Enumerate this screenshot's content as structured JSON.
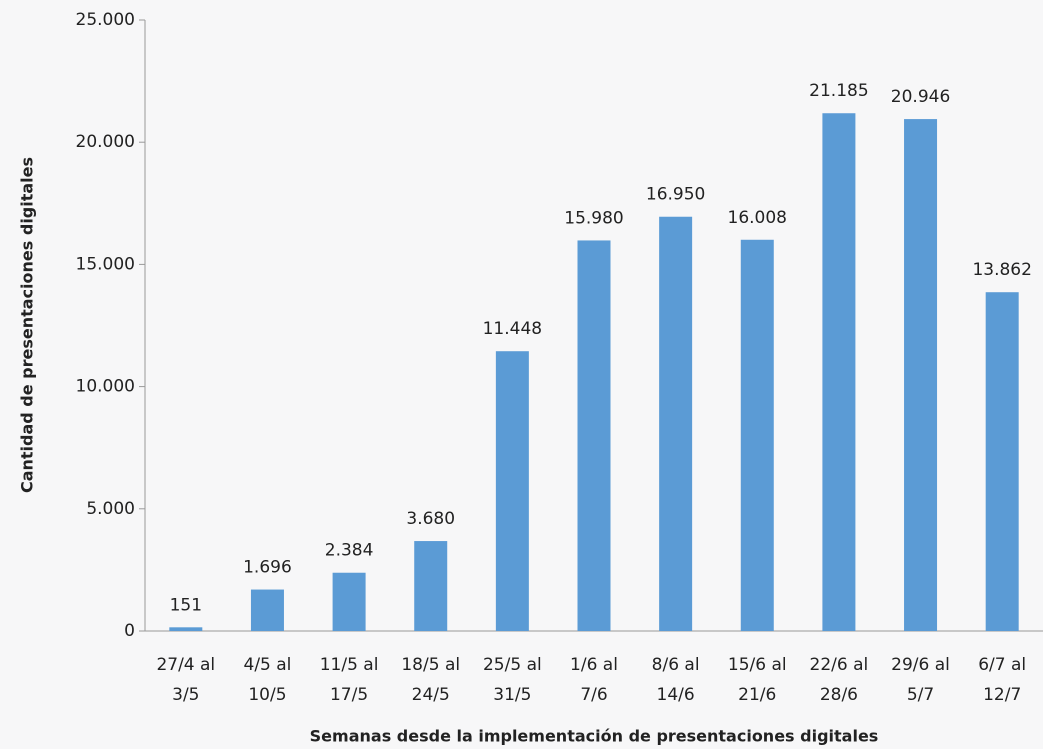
{
  "chart_data": {
    "type": "bar",
    "x_label": "Semanas desde la implementación de presentaciones digitales",
    "y_label": "Cantidad de presentaciones digitales",
    "categories": [
      [
        "27/4 al",
        "3/5"
      ],
      [
        "4/5 al",
        "10/5"
      ],
      [
        "11/5 al",
        "17/5"
      ],
      [
        "18/5 al",
        "24/5"
      ],
      [
        "25/5 al",
        "31/5"
      ],
      [
        "1/6 al",
        "7/6"
      ],
      [
        "8/6 al",
        "14/6"
      ],
      [
        "15/6 al",
        "21/6"
      ],
      [
        "22/6 al",
        "28/6"
      ],
      [
        "29/6 al",
        "5/7"
      ],
      [
        "6/7 al",
        "12/7"
      ]
    ],
    "values": [
      151,
      1696,
      2384,
      3680,
      11448,
      15980,
      16950,
      16008,
      21185,
      20946,
      13862
    ],
    "value_labels": [
      "151",
      "1.696",
      "2.384",
      "3.680",
      "11.448",
      "15.980",
      "16.950",
      "16.008",
      "21.185",
      "20.946",
      "13.862"
    ],
    "color": "#5b9bd5",
    "ylim": [
      0,
      25000
    ],
    "yticks": [
      0,
      {
        "value": 5000,
        "label": "5.000"
      },
      {
        "value": 10000,
        "label": "10.000"
      },
      {
        "value": 15000,
        "label": "15.000"
      },
      {
        "value": 20000,
        "label": "20.000"
      },
      {
        "value": 25000,
        "label": "25.000"
      }
    ],
    "grid": false
  }
}
